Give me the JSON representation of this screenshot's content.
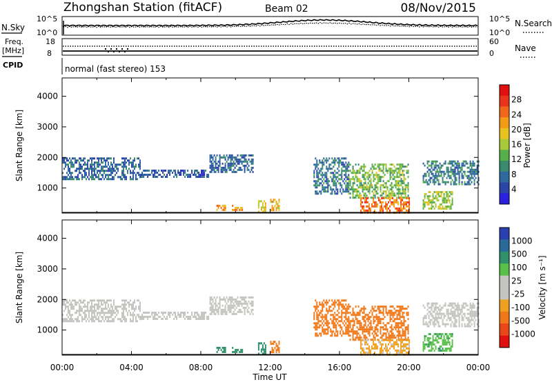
{
  "header": {
    "station": "Zhongshan Station (fitACF)",
    "beam": "Beam 02",
    "date": "08/Nov/2015"
  },
  "status_panels": {
    "nsky_label": "N.Sky",
    "nsky_ticks": [
      "10^5",
      "10^0"
    ],
    "nsearch_label": "N.Search",
    "nsearch_ticks": [
      "10^5",
      "10^0"
    ],
    "freq_label_1": "Freq.",
    "freq_label_2": "[MHz]",
    "freq_ticks": [
      "18",
      "8"
    ],
    "nave_label": "Nave",
    "nave_ticks": [
      "60",
      "0"
    ],
    "cpid_label": "CPID",
    "cpid_text": "normal (fast stereo) 153"
  },
  "colors": {
    "power_scale": [
      "#2b1fe0",
      "#2a44a8",
      "#2e6aa0",
      "#3a8a6e",
      "#55b04a",
      "#a8c93a",
      "#e8c21e",
      "#f39a16",
      "#f0661b",
      "#e83418",
      "#e01010"
    ],
    "velocity_scale": [
      "#2a40b0",
      "#2a6a9a",
      "#30906a",
      "#58c048",
      "#c4c4c0",
      "#c4c4c0",
      "#f0a020",
      "#f07818",
      "#e84818",
      "#e01010"
    ]
  },
  "chart_data": [
    {
      "type": "heatmap",
      "title": "",
      "ylabel": "Slant Range [km]",
      "xlabel": "",
      "ylim": [
        180,
        4600
      ],
      "xlim": [
        0,
        24
      ],
      "yticks": [
        "1000",
        "2000",
        "3000",
        "4000"
      ],
      "colorbar_label": "Power [dB]",
      "colorbar_ticks": [
        "4",
        "8",
        "12",
        "16",
        "20",
        "24",
        "28"
      ],
      "colorbar_range": [
        0,
        32
      ],
      "echo_regions": [
        {
          "t0": 0.0,
          "t1": 4.5,
          "r0": 1300,
          "r1": 2000,
          "value": 7
        },
        {
          "t0": 4.5,
          "t1": 8.5,
          "r0": 1350,
          "r1": 1600,
          "value": 6
        },
        {
          "t0": 8.5,
          "t1": 11.0,
          "r0": 1500,
          "r1": 2100,
          "value": 7
        },
        {
          "t0": 8.9,
          "t1": 9.4,
          "r0": 250,
          "r1": 450,
          "value": 22
        },
        {
          "t0": 9.8,
          "t1": 10.4,
          "r0": 250,
          "r1": 450,
          "value": 22
        },
        {
          "t0": 11.3,
          "t1": 11.7,
          "r0": 250,
          "r1": 600,
          "value": 18
        },
        {
          "t0": 12.0,
          "t1": 12.5,
          "r0": 250,
          "r1": 650,
          "value": 20
        },
        {
          "t0": 14.5,
          "t1": 16.5,
          "r0": 800,
          "r1": 2000,
          "value": 8
        },
        {
          "t0": 16.5,
          "t1": 20.0,
          "r0": 700,
          "r1": 1800,
          "value": 14
        },
        {
          "t0": 17.2,
          "t1": 20.0,
          "r0": 200,
          "r1": 700,
          "value": 24
        },
        {
          "t0": 20.8,
          "t1": 24.0,
          "r0": 1150,
          "r1": 1900,
          "value": 9
        },
        {
          "t0": 20.8,
          "t1": 22.5,
          "r0": 300,
          "r1": 900,
          "value": 16
        }
      ]
    },
    {
      "type": "heatmap",
      "title": "",
      "ylabel": "Slant Range [km]",
      "xlabel": "Time UT",
      "ylim": [
        180,
        4600
      ],
      "xlim": [
        0,
        24
      ],
      "yticks": [
        "1000",
        "2000",
        "3000",
        "4000"
      ],
      "xticks": [
        "00:00",
        "04:00",
        "08:00",
        "12:00",
        "16:00",
        "20:00",
        "00:00"
      ],
      "colorbar_label": "Velocity [m s⁻¹]",
      "colorbar_ticks": [
        "1000",
        "500",
        "100",
        "25",
        "-25",
        "-100",
        "-500",
        "-1000"
      ],
      "echo_regions": [
        {
          "t0": 0.0,
          "t1": 4.5,
          "r0": 1300,
          "r1": 2000,
          "value": 0
        },
        {
          "t0": 4.5,
          "t1": 8.5,
          "r0": 1350,
          "r1": 1600,
          "value": 0
        },
        {
          "t0": 8.5,
          "t1": 11.0,
          "r0": 1500,
          "r1": 2100,
          "value": 0
        },
        {
          "t0": 8.9,
          "t1": 9.4,
          "r0": 250,
          "r1": 450,
          "value": 300
        },
        {
          "t0": 9.8,
          "t1": 10.4,
          "r0": 250,
          "r1": 450,
          "value": 300
        },
        {
          "t0": 11.3,
          "t1": 11.7,
          "r0": 250,
          "r1": 600,
          "value": 300
        },
        {
          "t0": 12.0,
          "t1": 12.5,
          "r0": 250,
          "r1": 650,
          "value": -200
        },
        {
          "t0": 14.5,
          "t1": 16.5,
          "r0": 800,
          "r1": 2000,
          "value": -250
        },
        {
          "t0": 16.5,
          "t1": 20.0,
          "r0": 700,
          "r1": 1800,
          "value": -300
        },
        {
          "t0": 17.2,
          "t1": 20.0,
          "r0": 200,
          "r1": 700,
          "value": -40
        },
        {
          "t0": 20.8,
          "t1": 24.0,
          "r0": 1150,
          "r1": 1900,
          "value": 0
        },
        {
          "t0": 20.8,
          "t1": 22.5,
          "r0": 300,
          "r1": 900,
          "value": 80
        }
      ]
    }
  ]
}
